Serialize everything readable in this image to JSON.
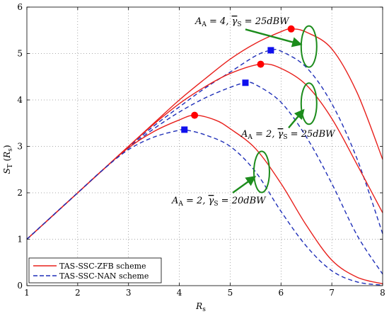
{
  "chart_data": {
    "type": "line",
    "xlabel": "R_s",
    "ylabel": "S_T (R_s)",
    "xlim": [
      1,
      8
    ],
    "ylim": [
      0,
      6
    ],
    "xticks": [
      "1",
      "2",
      "3",
      "4",
      "5",
      "6",
      "7",
      "8"
    ],
    "yticks": [
      "0",
      "1",
      "2",
      "3",
      "4",
      "5",
      "6"
    ],
    "grid": true,
    "legend_position": "bottom-left",
    "legend": [
      {
        "label": "TAS-SSC-ZFB scheme",
        "color": "#e8201c",
        "dash": "solid"
      },
      {
        "label": "TAS-SSC-NAN scheme",
        "color": "#1f2fb8",
        "dash": "dashed"
      }
    ],
    "series": [
      {
        "scheme": "ZFB",
        "case": "A=4, 25dBW",
        "color": "#e8201c",
        "dash": "solid",
        "points": [
          [
            1,
            1.0
          ],
          [
            1.5,
            1.5
          ],
          [
            2,
            2.0
          ],
          [
            2.5,
            2.5
          ],
          [
            3,
            3.0
          ],
          [
            3.5,
            3.5
          ],
          [
            4,
            4.0
          ],
          [
            4.5,
            4.45
          ],
          [
            5,
            4.88
          ],
          [
            5.5,
            5.22
          ],
          [
            6,
            5.47
          ],
          [
            6.2,
            5.53
          ],
          [
            6.5,
            5.46
          ],
          [
            7,
            5.1
          ],
          [
            7.5,
            4.15
          ],
          [
            8,
            2.72
          ]
        ],
        "marker": {
          "shape": "circle",
          "x": 6.2,
          "y": 5.53
        }
      },
      {
        "scheme": "NAN",
        "case": "A=4, 25dBW",
        "color": "#1f2fb8",
        "dash": "dashed",
        "points": [
          [
            1,
            1.0
          ],
          [
            1.5,
            1.5
          ],
          [
            2,
            2.0
          ],
          [
            2.5,
            2.5
          ],
          [
            3,
            2.98
          ],
          [
            3.5,
            3.44
          ],
          [
            4,
            3.85
          ],
          [
            4.5,
            4.25
          ],
          [
            5,
            4.6
          ],
          [
            5.5,
            4.95
          ],
          [
            5.8,
            5.07
          ],
          [
            6,
            5.05
          ],
          [
            6.5,
            4.7
          ],
          [
            7,
            3.92
          ],
          [
            7.5,
            2.72
          ],
          [
            8,
            1.12
          ]
        ],
        "marker": {
          "shape": "square",
          "x": 5.8,
          "y": 5.07
        }
      },
      {
        "scheme": "ZFB",
        "case": "A=2, 25dBW",
        "color": "#e8201c",
        "dash": "solid",
        "points": [
          [
            1,
            1.0
          ],
          [
            1.5,
            1.5
          ],
          [
            2,
            2.0
          ],
          [
            2.5,
            2.5
          ],
          [
            3,
            3.0
          ],
          [
            3.5,
            3.48
          ],
          [
            4,
            3.92
          ],
          [
            4.5,
            4.28
          ],
          [
            5,
            4.57
          ],
          [
            5.6,
            4.77
          ],
          [
            6,
            4.68
          ],
          [
            6.5,
            4.32
          ],
          [
            7,
            3.6
          ],
          [
            7.5,
            2.6
          ],
          [
            8,
            1.57
          ]
        ],
        "marker": {
          "shape": "circle",
          "x": 5.6,
          "y": 4.77
        }
      },
      {
        "scheme": "NAN",
        "case": "A=2, 25dBW",
        "color": "#1f2fb8",
        "dash": "dashed",
        "points": [
          [
            1,
            1.0
          ],
          [
            1.5,
            1.5
          ],
          [
            2,
            2.0
          ],
          [
            2.5,
            2.5
          ],
          [
            3,
            2.96
          ],
          [
            3.5,
            3.38
          ],
          [
            4,
            3.74
          ],
          [
            4.5,
            4.04
          ],
          [
            5,
            4.27
          ],
          [
            5.3,
            4.37
          ],
          [
            5.5,
            4.33
          ],
          [
            6,
            3.95
          ],
          [
            6.5,
            3.2
          ],
          [
            7,
            2.2
          ],
          [
            7.5,
            1.08
          ],
          [
            8,
            0.25
          ]
        ],
        "marker": {
          "shape": "square",
          "x": 5.3,
          "y": 4.37
        }
      },
      {
        "scheme": "ZFB",
        "case": "A=2, 20dBW",
        "color": "#e8201c",
        "dash": "solid",
        "points": [
          [
            1,
            1.0
          ],
          [
            1.5,
            1.5
          ],
          [
            2,
            2.0
          ],
          [
            2.5,
            2.5
          ],
          [
            3,
            2.97
          ],
          [
            3.5,
            3.32
          ],
          [
            4,
            3.57
          ],
          [
            4.3,
            3.67
          ],
          [
            4.7,
            3.57
          ],
          [
            5,
            3.38
          ],
          [
            5.5,
            2.95
          ],
          [
            6,
            2.2
          ],
          [
            6.5,
            1.3
          ],
          [
            7,
            0.55
          ],
          [
            7.5,
            0.18
          ],
          [
            8,
            0.04
          ]
        ],
        "marker": {
          "shape": "circle",
          "x": 4.3,
          "y": 3.67
        }
      },
      {
        "scheme": "NAN",
        "case": "A=2, 20dBW",
        "color": "#1f2fb8",
        "dash": "dashed",
        "points": [
          [
            1,
            1.0
          ],
          [
            1.5,
            1.5
          ],
          [
            2,
            2.0
          ],
          [
            2.5,
            2.5
          ],
          [
            3,
            2.93
          ],
          [
            3.5,
            3.2
          ],
          [
            4,
            3.35
          ],
          [
            4.1,
            3.36
          ],
          [
            4.5,
            3.25
          ],
          [
            5,
            3.0
          ],
          [
            5.5,
            2.45
          ],
          [
            6,
            1.6
          ],
          [
            6.5,
            0.85
          ],
          [
            7,
            0.32
          ],
          [
            7.5,
            0.08
          ],
          [
            8,
            0.01
          ]
        ],
        "marker": {
          "shape": "square",
          "x": 4.1,
          "y": 3.36
        }
      }
    ],
    "annotations": [
      {
        "text": "A_A = 4, γ̄_S = 25dBW",
        "x": 3.95,
        "y": 5.7,
        "ellipse": [
          6.55,
          5.15
        ],
        "arrow_from": [
          5.3,
          5.52
        ]
      },
      {
        "text": "A_A = 2, γ̄_S = 25dBW",
        "x": 5.3,
        "y": 3.18,
        "ellipse": [
          6.55,
          3.92
        ],
        "arrow_from": [
          6.15,
          3.4
        ]
      },
      {
        "text": "A_A = 2, γ̄_S = 20dBW",
        "x": 3.9,
        "y": 1.82,
        "ellipse": [
          5.62,
          2.45
        ],
        "arrow_from": [
          5.05,
          2.0
        ]
      }
    ]
  }
}
